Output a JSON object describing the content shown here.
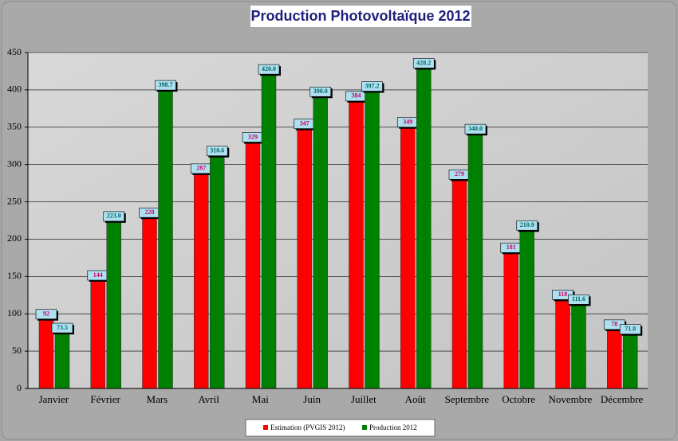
{
  "chart_data": {
    "type": "bar",
    "title": "Production Photovoltaïque 2012",
    "categories": [
      "Janvier",
      "Février",
      "Mars",
      "Avril",
      "Mai",
      "Juin",
      "Juillet",
      "Août",
      "Septembre",
      "Octobre",
      "Novembre",
      "Décembre"
    ],
    "series": [
      {
        "name": "Estimation (PVGIS 2012)",
        "color": "#ff0000",
        "values": [
          92,
          144,
          228,
          287,
          329,
          347,
          384,
          349,
          279,
          181,
          118,
          78
        ]
      },
      {
        "name": "Production 2012",
        "color": "#008000",
        "values": [
          73.5,
          223.0,
          398.7,
          310.6,
          420.0,
          390.0,
          397.2,
          428.2,
          340.0,
          210.9,
          111.6,
          71.8
        ],
        "value_labels": [
          "73.5",
          "223.0",
          "398.7",
          "310.6",
          "420.0",
          "390.0",
          "397.2",
          "428.2",
          "340.0",
          "210.9",
          "111.6",
          "71.8"
        ]
      }
    ],
    "ylim": [
      0,
      450
    ],
    "yticks": [
      0,
      50,
      100,
      150,
      200,
      250,
      300,
      350,
      400,
      450
    ],
    "grid": true,
    "legend": "bottom"
  }
}
